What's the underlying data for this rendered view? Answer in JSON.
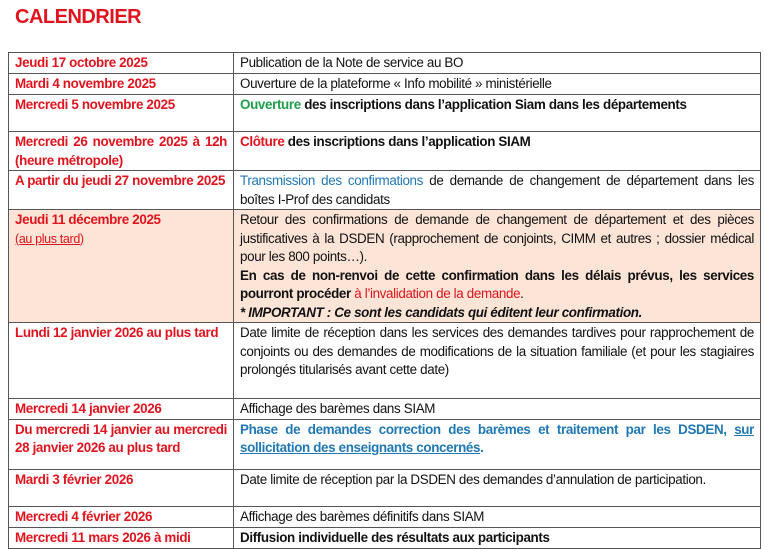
{
  "title": "CALENDRIER",
  "colors": {
    "date": "#e0141e",
    "highlight_row": "#fce4d6",
    "green": "#1e9e4a",
    "blue": "#1f78b4"
  },
  "rows": [
    {
      "h": 21,
      "date": "Jeudi 17 octobre 2025",
      "desc": [
        {
          "t": "Publication de la Note de service au BO"
        }
      ]
    },
    {
      "h": 21,
      "date": "Mardi 4 novembre 2025",
      "desc": [
        {
          "t": "Ouverture de la plateforme « Info mobilité » ministérielle"
        }
      ]
    },
    {
      "h": 37,
      "date": "Mercredi 5 novembre 2025",
      "desc": [
        {
          "t": "Ouverture",
          "s": "b green"
        },
        {
          "t": " des inscriptions dans l’application Siam dans les départements",
          "s": "b"
        }
      ]
    },
    {
      "h": 37,
      "date": "Mercredi 26 novembre 2025 à 12h (heure métropole)",
      "desc": [
        {
          "t": "Clôture",
          "s": "b red"
        },
        {
          "t": " des inscriptions dans l’application SIAM",
          "s": "b"
        }
      ]
    },
    {
      "h": 37,
      "date": "A partir du jeudi 27 novembre 2025",
      "desc": [
        {
          "t": "Transmission des confirmations",
          "s": "blue"
        },
        {
          "t": " de demande de changement de département dans les boîtes I-Prof des candidats"
        }
      ]
    },
    {
      "h": 111,
      "highlight": true,
      "date": "Jeudi 11 décembre 2025",
      "date_sub": "(au plus tard)",
      "desc": [
        {
          "t": "Retour des confirmations de demande de changement de département et des pièces justificatives à la DSDEN (rapprochement de conjoints, CIMM et autres ; dossier médical pour les 800 points…)."
        },
        {
          "t": "En cas de non-renvoi de cette confirmation dans les délais prévus, les services pourront procéder ",
          "s": "b",
          "br": true
        },
        {
          "t": "à l’invalidation de la demande",
          "s": "red"
        },
        {
          "t": "."
        },
        {
          "t": "* IMPORTANT : Ce sont les candidats qui éditent leur confirmation.",
          "s": "b i",
          "br": true
        }
      ]
    },
    {
      "h": 76,
      "date": "Lundi 12 janvier 2026 au plus tard",
      "desc": [
        {
          "t": "Date limite de réception dans les services des demandes tardives pour rapprochement de conjoints ou des demandes de modifications de la situation familiale (et pour les stagiaires prolongés titularisés avant cette date)"
        }
      ]
    },
    {
      "h": 19,
      "date": "Mercredi 14 janvier 2026",
      "desc": [
        {
          "t": "Affichage des barèmes dans SIAM"
        }
      ]
    },
    {
      "h": 50,
      "date": "Du mercredi 14 janvier au mercredi 28 janvier 2026 au plus tard",
      "desc": [
        {
          "t": "Phase de demandes correction des barèmes et traitement par les DSDEN, ",
          "s": "b blue"
        },
        {
          "t": "sur sollicitation des enseignants concernés",
          "s": "b blue u"
        },
        {
          "t": ".",
          "s": "b blue"
        }
      ]
    },
    {
      "h": 37,
      "date": "Mardi 3 février 2026",
      "desc": [
        {
          "t": "Date limite de réception par la DSDEN des demandes d’annulation de participation."
        }
      ],
      "left": true
    },
    {
      "h": 21,
      "date": "Mercredi 4 février 2026",
      "desc": [
        {
          "t": "Affichage des barèmes définitifs dans SIAM"
        }
      ]
    },
    {
      "h": 21,
      "date": "Mercredi 11 mars 2026 à midi",
      "desc": [
        {
          "t": "Diffusion individuelle des résultats aux participants",
          "s": "b"
        }
      ]
    }
  ]
}
